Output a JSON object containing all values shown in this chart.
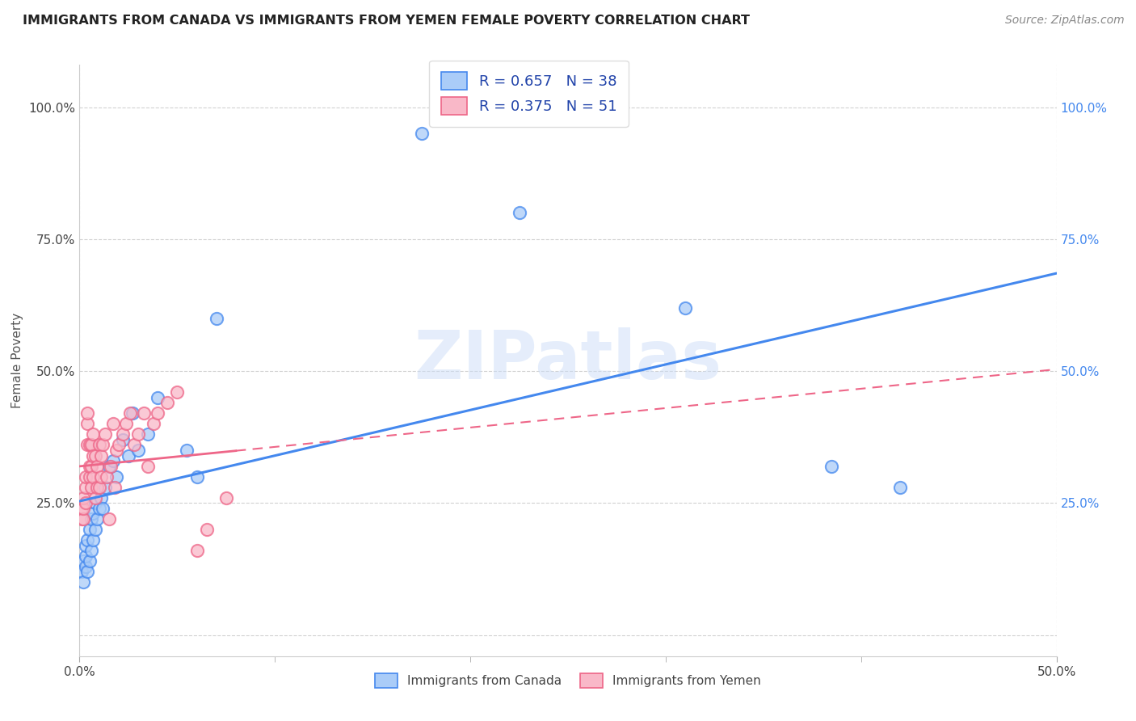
{
  "title": "IMMIGRANTS FROM CANADA VS IMMIGRANTS FROM YEMEN FEMALE POVERTY CORRELATION CHART",
  "source": "Source: ZipAtlas.com",
  "ylabel": "Female Poverty",
  "R_canada": 0.657,
  "N_canada": 38,
  "R_yemen": 0.375,
  "N_yemen": 51,
  "color_canada": "#aaccf8",
  "color_yemen": "#f9b8c8",
  "line_color_canada": "#4488ee",
  "line_color_yemen": "#ee6688",
  "tick_color_right": "#4488ee",
  "watermark": "ZIPatlas",
  "legend_label_canada": "Immigrants from Canada",
  "legend_label_yemen": "Immigrants from Yemen",
  "x_min": 0.0,
  "x_max": 0.5,
  "y_min": -0.04,
  "y_max": 1.08,
  "canada_x": [
    0.001,
    0.002,
    0.002,
    0.003,
    0.003,
    0.003,
    0.004,
    0.004,
    0.005,
    0.005,
    0.006,
    0.006,
    0.007,
    0.007,
    0.008,
    0.008,
    0.009,
    0.01,
    0.011,
    0.012,
    0.013,
    0.015,
    0.017,
    0.019,
    0.022,
    0.025,
    0.027,
    0.03,
    0.035,
    0.04,
    0.055,
    0.06,
    0.07,
    0.175,
    0.225,
    0.31,
    0.385,
    0.42
  ],
  "canada_y": [
    0.12,
    0.1,
    0.14,
    0.13,
    0.15,
    0.17,
    0.12,
    0.18,
    0.14,
    0.2,
    0.16,
    0.22,
    0.18,
    0.23,
    0.2,
    0.25,
    0.22,
    0.24,
    0.26,
    0.24,
    0.28,
    0.32,
    0.33,
    0.3,
    0.37,
    0.34,
    0.42,
    0.35,
    0.38,
    0.45,
    0.35,
    0.3,
    0.6,
    0.95,
    0.8,
    0.62,
    0.32,
    0.28
  ],
  "yemen_x": [
    0.001,
    0.001,
    0.002,
    0.002,
    0.002,
    0.003,
    0.003,
    0.003,
    0.004,
    0.004,
    0.004,
    0.005,
    0.005,
    0.005,
    0.006,
    0.006,
    0.006,
    0.007,
    0.007,
    0.007,
    0.008,
    0.008,
    0.009,
    0.009,
    0.01,
    0.01,
    0.011,
    0.011,
    0.012,
    0.013,
    0.014,
    0.015,
    0.016,
    0.017,
    0.018,
    0.019,
    0.02,
    0.022,
    0.024,
    0.026,
    0.028,
    0.03,
    0.033,
    0.035,
    0.038,
    0.04,
    0.045,
    0.05,
    0.06,
    0.065,
    0.075
  ],
  "yemen_y": [
    0.22,
    0.24,
    0.22,
    0.24,
    0.26,
    0.25,
    0.28,
    0.3,
    0.4,
    0.42,
    0.36,
    0.3,
    0.32,
    0.36,
    0.28,
    0.32,
    0.36,
    0.3,
    0.34,
    0.38,
    0.26,
    0.34,
    0.28,
    0.32,
    0.36,
    0.28,
    0.3,
    0.34,
    0.36,
    0.38,
    0.3,
    0.22,
    0.32,
    0.4,
    0.28,
    0.35,
    0.36,
    0.38,
    0.4,
    0.42,
    0.36,
    0.38,
    0.42,
    0.32,
    0.4,
    0.42,
    0.44,
    0.46,
    0.16,
    0.2,
    0.26
  ],
  "canada_line_x_start": 0.0,
  "canada_line_x_end": 0.5,
  "yemen_line_x_start": 0.0,
  "yemen_line_x_end": 0.5
}
